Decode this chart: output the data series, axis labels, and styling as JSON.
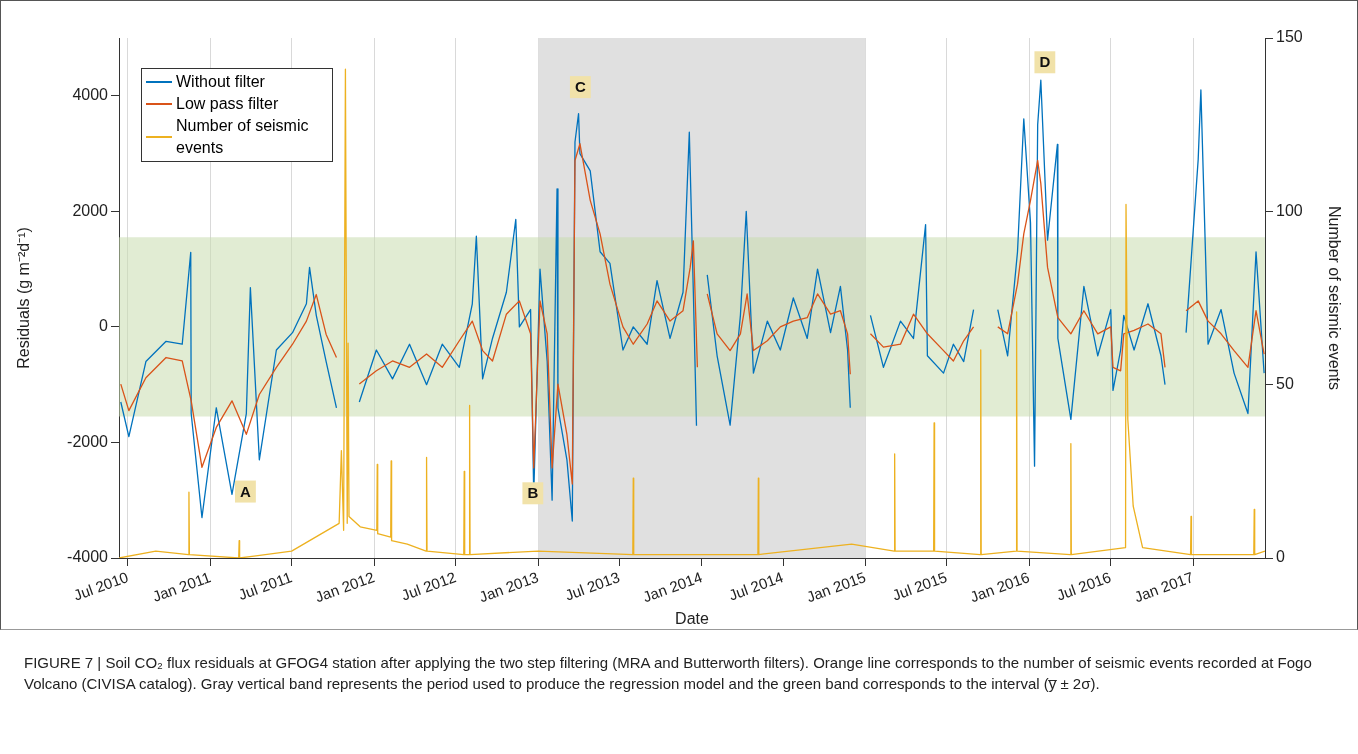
{
  "chart_data": {
    "type": "line",
    "xlabel": "Date",
    "ylabel": "Residuals (g m⁻²d⁻¹)",
    "y2label": "Number of seismic events",
    "xlim": [
      "2010-06-11",
      "2017-06-10"
    ],
    "xticks": [
      {
        "value": "2010-07-01",
        "label": "Jul 2010"
      },
      {
        "value": "2011-01-01",
        "label": "Jan 2011"
      },
      {
        "value": "2011-07-01",
        "label": "Jul 2011"
      },
      {
        "value": "2012-01-01",
        "label": "Jan 2012"
      },
      {
        "value": "2012-07-01",
        "label": "Jul 2012"
      },
      {
        "value": "2013-01-01",
        "label": "Jan 2013"
      },
      {
        "value": "2013-07-01",
        "label": "Jul 2013"
      },
      {
        "value": "2014-01-01",
        "label": "Jan 2014"
      },
      {
        "value": "2014-07-01",
        "label": "Jul 2014"
      },
      {
        "value": "2015-01-01",
        "label": "Jan 2015"
      },
      {
        "value": "2015-07-01",
        "label": "Jul 2015"
      },
      {
        "value": "2016-01-01",
        "label": "Jan 2016"
      },
      {
        "value": "2016-07-01",
        "label": "Jul 2016"
      },
      {
        "value": "2017-01-01",
        "label": "Jan 2017"
      }
    ],
    "ylim": [
      -4000,
      5000
    ],
    "yticks": [
      -4000,
      -2000,
      0,
      2000,
      4000
    ],
    "y2lim": [
      0,
      150
    ],
    "y2ticks": [
      0,
      50,
      100,
      150
    ],
    "grid": "x",
    "legend": "top left",
    "marker": "none",
    "line_style": "solid",
    "bands": [
      {
        "axis": "x",
        "from": "2013-01-01",
        "to": "2015-01-01",
        "color": "#e0e0e0"
      },
      {
        "axis": "y",
        "from": -1550,
        "to": 1550,
        "color": "#c9dcae"
      }
    ],
    "series": [
      {
        "name": "Without filter",
        "color": "#0072bd",
        "x": [
          "2010-06-15",
          "2010-07-03",
          "2010-08-10",
          "2010-09-24",
          "2010-10-30",
          "2010-11-18",
          "2010-11-19",
          "2010-12-13",
          "2011-01-14",
          "2011-02-18",
          "2011-03-22",
          "2011-03-31",
          "2011-04-20",
          "2011-05-28",
          "2011-07-03",
          "2011-08-03",
          "2011-08-10",
          "2011-08-25",
          "2011-09-16",
          "2011-10-09",
          "2011-10-25",
          "2011-11-29",
          "2012-01-06",
          "2012-02-11",
          "2012-03-20",
          "2012-04-27",
          "2012-06-01",
          "2012-07-09",
          "2012-08-07",
          "2012-08-16",
          "2012-08-30",
          "2012-09-21",
          "2012-10-22",
          "2012-11-12",
          "2012-11-20",
          "2012-12-15",
          "2012-12-22",
          "2013-01-05",
          "2013-01-21",
          "2013-02-01",
          "2013-02-12",
          "2013-02-14",
          "2013-03-06",
          "2013-03-18",
          "2013-03-24",
          "2013-04-01",
          "2013-04-04",
          "2013-04-27",
          "2013-05-19",
          "2013-06-10",
          "2013-07-09",
          "2013-08-01",
          "2013-09-01",
          "2013-09-23",
          "2013-10-22",
          "2013-11-20",
          "2013-12-04",
          "2013-12-13",
          "2013-12-20",
          "2014-01-01",
          "2014-01-13",
          "2014-02-04",
          "2014-03-05",
          "2014-03-28",
          "2014-04-10",
          "2014-04-26",
          "2014-05-27",
          "2014-06-25",
          "2014-07-24",
          "2014-08-24",
          "2014-09-16",
          "2014-10-15",
          "2014-11-06",
          "2014-11-22",
          "2014-11-28",
          "2014-12-20",
          "2015-01-12",
          "2015-02-10",
          "2015-03-20",
          "2015-04-18",
          "2015-05-15",
          "2015-05-19",
          "2015-06-24",
          "2015-07-16",
          "2015-08-08",
          "2015-08-30",
          "2015-09-25",
          "2015-10-23",
          "2015-11-14",
          "2015-12-06",
          "2015-12-20",
          "2016-01-04",
          "2016-01-13",
          "2016-01-20",
          "2016-01-27",
          "2016-02-11",
          "2016-03-04",
          "2016-03-05",
          "2016-04-03",
          "2016-05-02",
          "2016-06-02",
          "2016-07-01",
          "2016-07-06",
          "2016-07-23",
          "2016-07-30",
          "2016-08-22",
          "2016-09-22",
          "2016-10-21",
          "2016-10-30",
          "2016-11-20",
          "2016-12-16",
          "2017-01-12",
          "2017-01-18",
          "2017-02-03",
          "2017-03-04",
          "2017-04-02",
          "2017-05-03",
          "2017-05-21",
          "2017-06-08"
        ],
        "values": [
          -1300,
          -1900,
          -600,
          -250,
          -300,
          1290,
          -1500,
          -3300,
          -1400,
          -2900,
          -1500,
          680,
          -2300,
          -400,
          -100,
          400,
          1030,
          200,
          -600,
          -1400,
          null,
          -1300,
          -400,
          -900,
          -300,
          -1000,
          -300,
          -700,
          400,
          1570,
          -900,
          -200,
          600,
          1860,
          0,
          300,
          -2900,
          1000,
          -600,
          -3000,
          2390,
          -1400,
          -2300,
          -3360,
          3200,
          3690,
          3000,
          2700,
          1300,
          1100,
          -400,
          0,
          -300,
          800,
          -200,
          600,
          3370,
          600,
          -1710,
          null,
          900,
          -500,
          -1700,
          200,
          2000,
          -800,
          100,
          -400,
          500,
          -200,
          1000,
          -100,
          700,
          -400,
          -1400,
          null,
          200,
          -700,
          100,
          -200,
          1770,
          -500,
          -800,
          -300,
          -600,
          300,
          null,
          300,
          -500,
          1300,
          3600,
          1800,
          -2410,
          3500,
          4270,
          1500,
          3160,
          -200,
          -1600,
          700,
          -500,
          300,
          -1100,
          -400,
          200,
          -400,
          400,
          -500,
          -1000,
          null,
          -100,
          2900,
          4100,
          -300,
          300,
          -800,
          -1500,
          1300,
          -800
        ]
      },
      {
        "name": "Low pass filter",
        "color": "#d95319",
        "x": [
          "2010-06-15",
          "2010-07-03",
          "2010-08-10",
          "2010-09-24",
          "2010-10-30",
          "2010-11-19",
          "2010-12-13",
          "2011-01-14",
          "2011-02-18",
          "2011-03-22",
          "2011-04-20",
          "2011-05-28",
          "2011-07-03",
          "2011-08-03",
          "2011-08-25",
          "2011-09-16",
          "2011-10-09",
          "2011-10-25",
          "2011-11-29",
          "2012-01-06",
          "2012-02-11",
          "2012-03-20",
          "2012-04-27",
          "2012-06-01",
          "2012-07-09",
          "2012-08-07",
          "2012-08-30",
          "2012-09-21",
          "2012-10-22",
          "2012-11-20",
          "2012-12-15",
          "2012-12-22",
          "2013-01-05",
          "2013-01-21",
          "2013-02-01",
          "2013-02-14",
          "2013-03-06",
          "2013-03-18",
          "2013-03-24",
          "2013-04-04",
          "2013-04-27",
          "2013-05-19",
          "2013-06-10",
          "2013-07-09",
          "2013-08-01",
          "2013-09-01",
          "2013-09-23",
          "2013-10-22",
          "2013-11-20",
          "2013-12-06",
          "2013-12-13",
          "2013-12-22",
          "2014-01-01",
          "2014-01-13",
          "2014-02-04",
          "2014-03-05",
          "2014-03-28",
          "2014-04-12",
          "2014-04-26",
          "2014-05-27",
          "2014-06-25",
          "2014-07-24",
          "2014-08-24",
          "2014-09-16",
          "2014-10-15",
          "2014-11-06",
          "2014-11-22",
          "2014-11-28",
          "2014-12-20",
          "2015-01-12",
          "2015-02-10",
          "2015-03-20",
          "2015-04-18",
          "2015-05-19",
          "2015-06-24",
          "2015-07-16",
          "2015-08-08",
          "2015-08-30",
          "2015-09-25",
          "2015-10-23",
          "2015-11-14",
          "2015-12-06",
          "2015-12-20",
          "2016-01-04",
          "2016-01-20",
          "2016-01-27",
          "2016-02-11",
          "2016-03-05",
          "2016-04-03",
          "2016-05-02",
          "2016-06-02",
          "2016-07-01",
          "2016-07-06",
          "2016-07-23",
          "2016-07-30",
          "2016-08-22",
          "2016-09-22",
          "2016-10-21",
          "2016-10-30",
          "2016-11-20",
          "2016-12-16",
          "2017-01-12",
          "2017-02-03",
          "2017-03-04",
          "2017-04-02",
          "2017-05-03",
          "2017-05-21",
          "2017-06-08"
        ],
        "values": [
          -990,
          -1450,
          -880,
          -530,
          -590,
          -1280,
          -2430,
          -1740,
          -1280,
          -1860,
          -1170,
          -700,
          -300,
          100,
          560,
          -130,
          -530,
          null,
          -990,
          -760,
          -590,
          -700,
          -470,
          -700,
          -240,
          100,
          -410,
          -590,
          220,
          450,
          -120,
          -2440,
          450,
          -120,
          -2440,
          -990,
          -1860,
          -2720,
          2880,
          3170,
          2190,
          1610,
          740,
          0,
          -300,
          50,
          450,
          100,
          280,
          1030,
          1490,
          -700,
          null,
          570,
          -120,
          -410,
          -120,
          570,
          -410,
          -240,
          0,
          100,
          160,
          570,
          220,
          280,
          -120,
          -820,
          null,
          -120,
          -350,
          -300,
          220,
          -120,
          -410,
          -590,
          -240,
          0,
          null,
          0,
          -120,
          740,
          1610,
          2190,
          2880,
          2480,
          1030,
          160,
          -120,
          280,
          -120,
          0,
          -700,
          -760,
          -120,
          -60,
          50,
          -120,
          -700,
          null,
          280,
          450,
          100,
          -120,
          -410,
          -700,
          280,
          -470
        ]
      },
      {
        "name": "Number of seismic events",
        "color": "#edb120",
        "axis": "y2",
        "x": [
          "2010-06-11",
          "2010-09-01",
          "2010-11-13",
          "2010-11-14",
          "2010-11-15",
          "2011-03-05",
          "2011-03-06",
          "2011-03-07",
          "2011-07-01",
          "2011-10-15",
          "2011-10-20",
          "2011-10-25",
          "2011-10-29",
          "2011-11-02",
          "2011-11-04",
          "2011-11-06",
          "2011-12-01",
          "2012-01-07",
          "2012-01-08",
          "2012-01-09",
          "2012-02-07",
          "2012-02-08",
          "2012-02-09",
          "2012-03-15",
          "2012-04-26",
          "2012-04-27",
          "2012-04-28",
          "2012-07-19",
          "2012-07-20",
          "2012-07-21",
          "2012-07-31",
          "2012-08-01",
          "2012-08-02",
          "2013-01-01",
          "2013-07-31",
          "2013-08-01",
          "2013-08-02",
          "2014-05-06",
          "2014-05-07",
          "2014-05-08",
          "2014-12-01",
          "2015-03-06",
          "2015-03-07",
          "2015-03-08",
          "2015-06-02",
          "2015-06-03",
          "2015-06-04",
          "2015-09-14",
          "2015-09-15",
          "2015-09-16",
          "2015-12-03",
          "2015-12-04",
          "2015-12-05",
          "2016-04-02",
          "2016-04-03",
          "2016-04-04",
          "2016-08-03",
          "2016-08-04",
          "2016-08-08",
          "2016-08-20",
          "2016-09-10",
          "2016-12-26",
          "2016-12-27",
          "2016-12-28",
          "2017-05-16",
          "2017-05-17",
          "2017-05-18",
          "2017-06-10"
        ],
        "values": [
          0,
          2,
          1,
          19,
          1,
          0,
          5,
          0,
          2,
          10,
          31,
          8,
          141,
          10,
          62,
          12,
          9,
          8,
          27,
          7,
          6,
          28,
          5,
          4,
          2,
          29,
          2,
          1,
          25,
          1,
          1,
          44,
          1,
          2,
          1,
          23,
          1,
          1,
          23,
          1,
          4,
          2,
          30,
          2,
          2,
          39,
          2,
          1,
          60,
          1,
          2,
          71,
          2,
          1,
          33,
          1,
          3,
          102,
          40,
          15,
          3,
          1,
          12,
          1,
          1,
          14,
          1,
          2
        ]
      }
    ],
    "annotations": [
      {
        "text": "A",
        "x": "2011-03-20",
        "y": -2850
      },
      {
        "text": "B",
        "x": "2012-12-20",
        "y": -2880
      },
      {
        "text": "C",
        "x": "2013-04-05",
        "y": 4150
      },
      {
        "text": "D",
        "x": "2016-02-05",
        "y": 4580
      },
      "FIGURE 7 | Soil CO₂ flux residuals at GFOG4 station after applying the two step filtering (MRA and Butterworth filters). Orange line corresponds to the number of seismic events recorded at Fogo Volcano (CIVISA catalog). Gray vertical band represents the period used to produce the regression model and the green band corresponds to the interval (y̅ ± 2σ)."
    ]
  }
}
